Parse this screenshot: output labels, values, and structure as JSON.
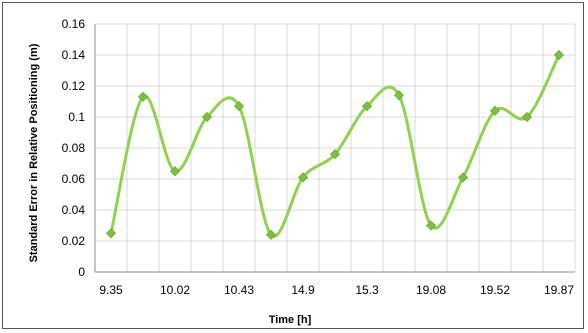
{
  "chart_data": {
    "type": "line",
    "title": "",
    "xlabel": "Time [h]",
    "ylabel": "Standard Error in Relative Positioning (m)",
    "ylim": [
      0,
      0.16
    ],
    "yticks": [
      "0",
      "0.02",
      "0.04",
      "0.06",
      "0.08",
      "0.1",
      "0.12",
      "0.14",
      "0.16"
    ],
    "x_tick_labels": [
      "9.35",
      "10.02",
      "10.43",
      "14.9",
      "15.3",
      "19.08",
      "19.52",
      "19.87"
    ],
    "grid": true,
    "smooth": true,
    "line_color": "#92d050",
    "marker": "diamond",
    "series": [
      {
        "values": [
          0.025,
          0.113,
          0.065,
          0.1,
          0.107,
          0.024,
          0.061,
          0.076,
          0.107,
          0.114,
          0.03,
          0.061,
          0.104,
          0.1,
          0.14
        ]
      }
    ]
  }
}
